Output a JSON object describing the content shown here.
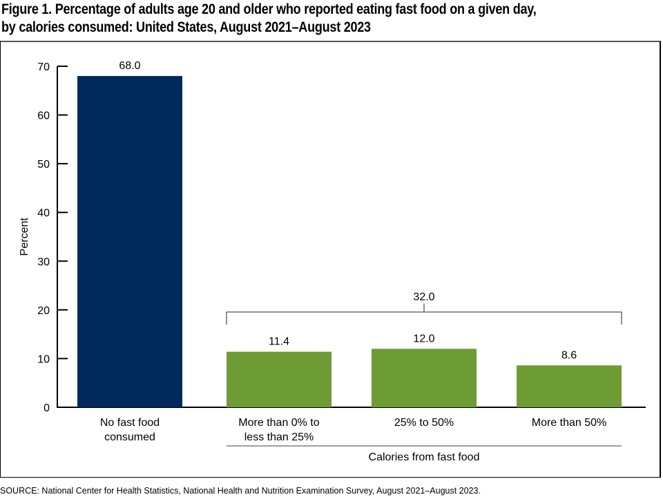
{
  "chart_data": {
    "type": "bar",
    "title": "Figure 1. Percentage of adults age 20 and older who reported eating fast food on a given day, by calories consumed: United States, August 2021–August 2023",
    "title_lines": [
      "Figure 1. Percentage of adults age 20 and older who reported eating fast food on a given day,",
      "by calories consumed: United States, August 2021–August 2023"
    ],
    "xlabel": "Calories from fast food",
    "ylabel": "Percent",
    "ylim": [
      0,
      70
    ],
    "yticks": [
      0,
      10,
      20,
      30,
      40,
      50,
      60,
      70
    ],
    "grid": false,
    "categories": [
      [
        "No fast food",
        "consumed"
      ],
      [
        "More than 0% to",
        "less than 25%"
      ],
      [
        "25% to 50%"
      ],
      [
        "More than 50%"
      ]
    ],
    "values": [
      68.0,
      11.4,
      12.0,
      8.6
    ],
    "data_labels": [
      "68.0",
      "11.4",
      "12.0",
      "8.6"
    ],
    "bar_colors": [
      "#002a5c",
      "#6d9b34",
      "#6d9b34",
      "#6d9b34"
    ],
    "group_bracket": {
      "label": "32.0",
      "value": 32.0,
      "spans_categories": [
        1,
        3
      ]
    },
    "group_label_categories": [
      1,
      3
    ]
  },
  "source": "SOURCE: National Center for Health Statistics, National Health and Nutrition Examination Survey, August 2021–August 2023."
}
